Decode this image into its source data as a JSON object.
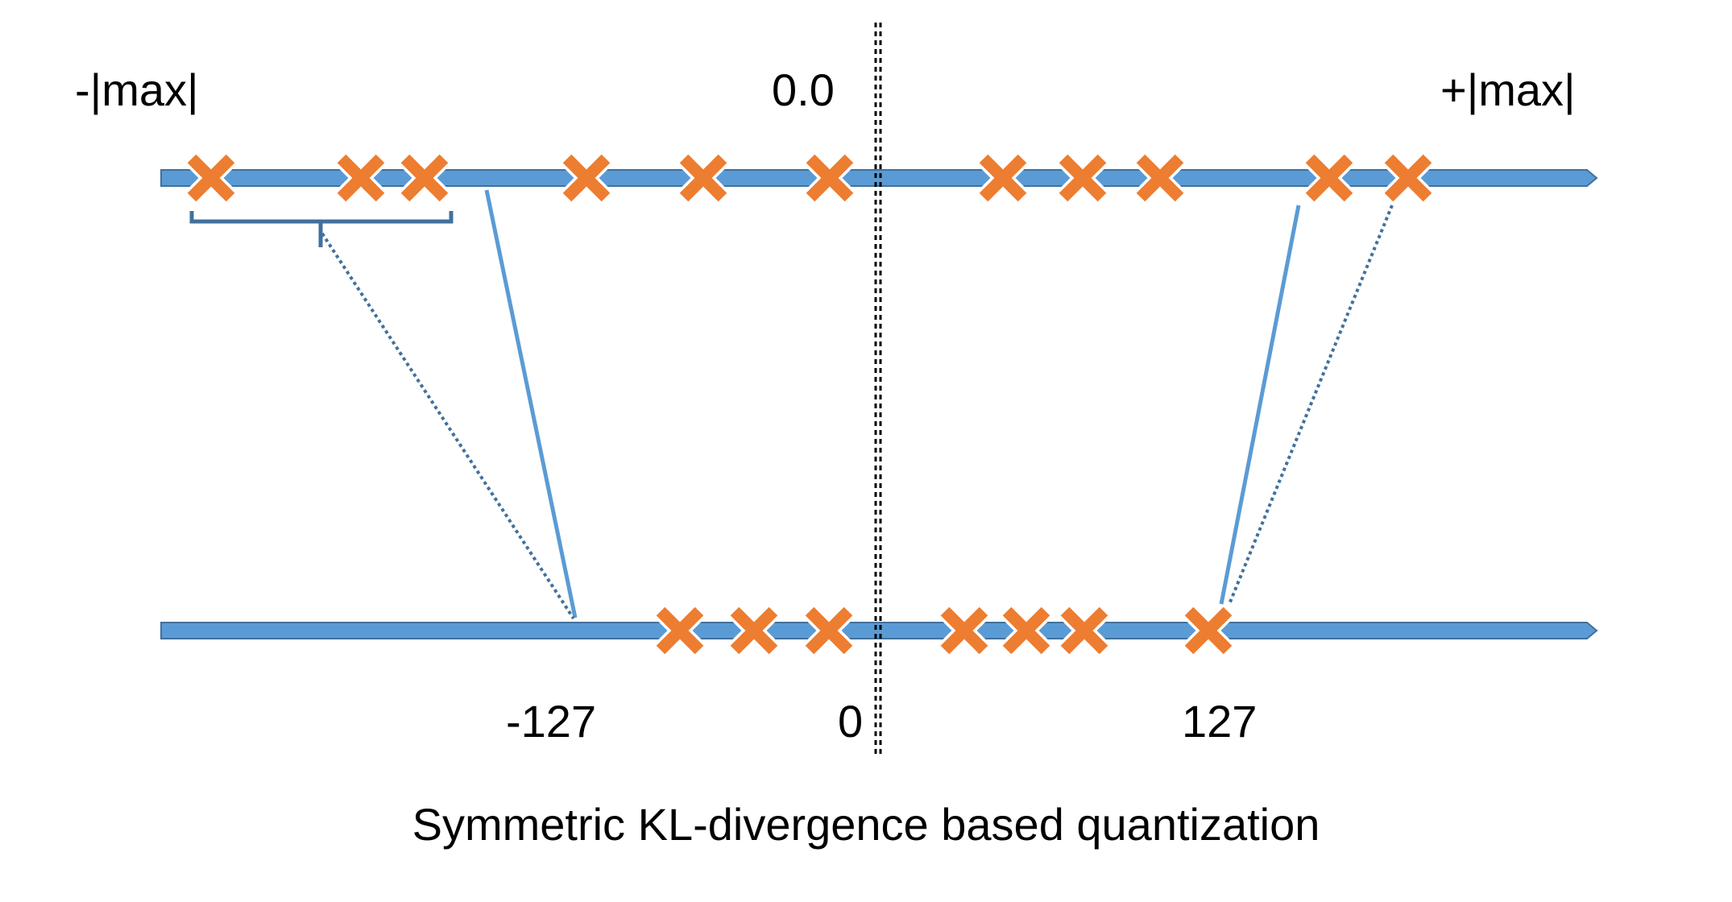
{
  "labels": {
    "neg_max": "-|max|",
    "zero_float": "0.0",
    "pos_max": "+|max|",
    "neg_127": "-127",
    "zero_int": "0",
    "pos_127": "127"
  },
  "caption": "Symmetric KL-divergence based quantization",
  "colors": {
    "axis_fill": "#5b9bd5",
    "axis_stroke": "#41719c",
    "marker": "#ed7d31",
    "marker_outline": "#ffffff",
    "mapping_line": "#5b9bd5",
    "dotted_line": "#41719c",
    "center_line": "#000000",
    "bracket": "#41719c"
  },
  "icons": {
    "marker": "x-mark-icon"
  }
}
